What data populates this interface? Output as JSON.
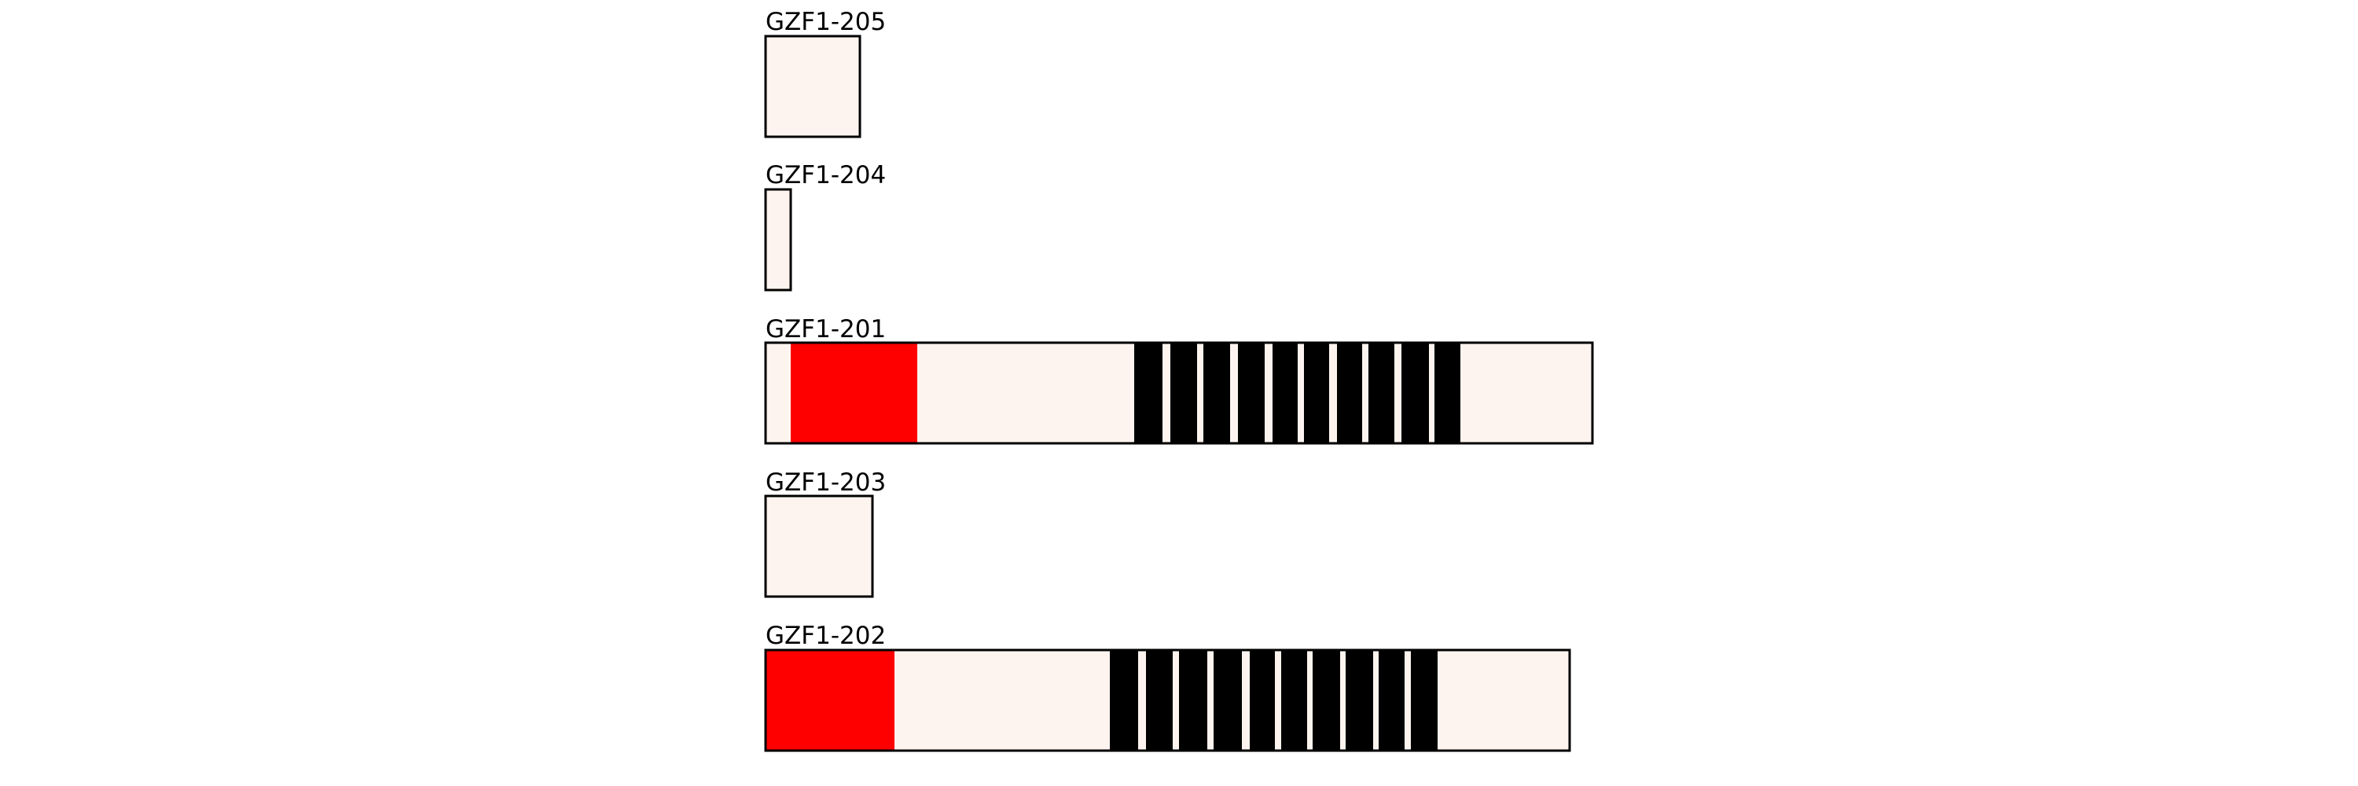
{
  "transcripts": [
    {
      "label": "GZF1-205"
    },
    {
      "label": "GZF1-204"
    },
    {
      "label": "GZF1-201"
    },
    {
      "label": "GZF1-203"
    },
    {
      "label": "GZF1-202"
    }
  ]
}
